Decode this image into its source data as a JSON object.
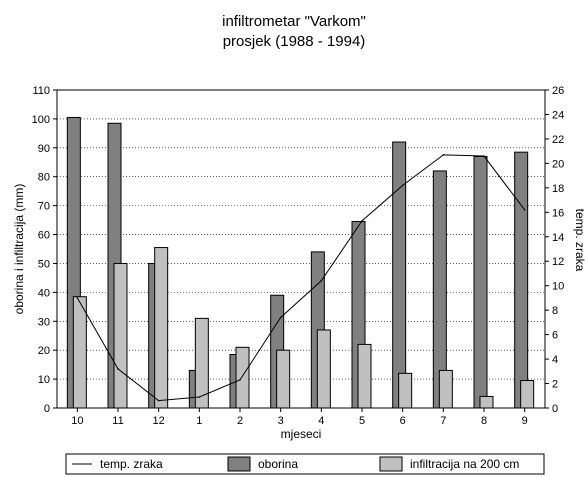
{
  "chart_data": {
    "type": "bar",
    "title": "infiltrometar \"Varkom\"",
    "subtitle": "prosjek (1988 - 1994)",
    "xlabel": "mjeseci",
    "ylabel": "oborina i infiltracija (mm)",
    "y2label": "temp. zraka",
    "categories": [
      "10",
      "11",
      "12",
      "1",
      "2",
      "3",
      "4",
      "5",
      "6",
      "7",
      "8",
      "9"
    ],
    "ylim": [
      0,
      110
    ],
    "y_ticks": [
      "0",
      "10",
      "20",
      "30",
      "40",
      "50",
      "60",
      "70",
      "80",
      "90",
      "100",
      "110"
    ],
    "y2lim": [
      0,
      26
    ],
    "y2_ticks": [
      "0",
      "2",
      "4",
      "6",
      "8",
      "10",
      "12",
      "14",
      "16",
      "18",
      "20",
      "22",
      "24",
      "26"
    ],
    "grid": true,
    "legend_position": "bottom",
    "series": [
      {
        "name": "oborina",
        "type": "bar",
        "axis": "left",
        "color": "#808080",
        "values": [
          100.5,
          98.5,
          50,
          13,
          18.5,
          39,
          54,
          64.5,
          92,
          82,
          87,
          88.5
        ]
      },
      {
        "name": "infiltracija na 200 cm",
        "type": "bar",
        "axis": "left",
        "color": "#c0c0c0",
        "values": [
          38.5,
          50,
          55.5,
          31,
          21,
          20,
          27,
          22,
          12,
          13,
          4,
          9.5
        ]
      },
      {
        "name": "temp. zraka",
        "type": "line",
        "axis": "right",
        "color": "#000000",
        "values": [
          9,
          3.2,
          0.6,
          0.9,
          2.3,
          7.4,
          10.4,
          15.3,
          18.2,
          20.7,
          20.6,
          16.2
        ]
      }
    ]
  }
}
